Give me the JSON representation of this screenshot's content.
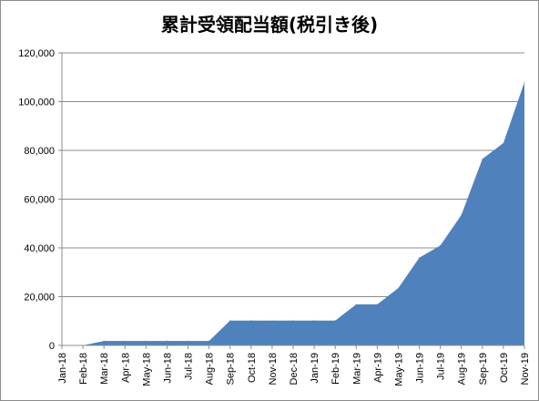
{
  "chart_data": {
    "type": "area",
    "title": "累計受領配当額(税引き後)",
    "xlabel": "",
    "ylabel": "",
    "categories": [
      "Jan-18",
      "Feb-18",
      "Mar-18",
      "Apr-18",
      "May-18",
      "Jun-18",
      "Jul-18",
      "Aug-18",
      "Sep-18",
      "Oct-18",
      "Nov-18",
      "Dec-18",
      "Jan-19",
      "Feb-19",
      "Mar-19",
      "Apr-19",
      "May-19",
      "Jun-19",
      "Jul-19",
      "Aug-19",
      "Sep-19",
      "Oct-19",
      "Nov-19"
    ],
    "series": [
      {
        "values": [
          0,
          0,
          1800,
          1800,
          1800,
          1800,
          1800,
          1800,
          10200,
          10200,
          10200,
          10200,
          10200,
          10200,
          16800,
          16800,
          23500,
          36000,
          41000,
          53500,
          76500,
          83000,
          108000
        ]
      }
    ],
    "ylim": [
      0,
      120000
    ],
    "yticks": [
      0,
      20000,
      40000,
      60000,
      80000,
      100000,
      120000
    ],
    "ytick_labels": [
      "0",
      "20,000",
      "40,000",
      "60,000",
      "80,000",
      "100,000",
      "120,000"
    ],
    "grid": "horizontal",
    "legend": "none",
    "fill_color": "#4f81bd",
    "grid_color": "#8c8c8c"
  }
}
